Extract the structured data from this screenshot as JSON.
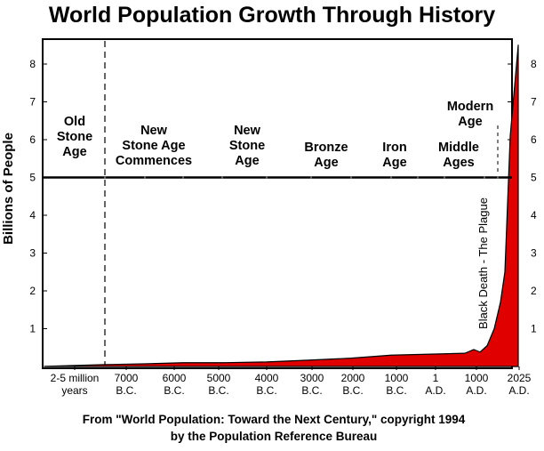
{
  "chart_data": {
    "type": "area",
    "title": "World Population Growth Through History",
    "ylabel": "Billions of People",
    "ylim": [
      0,
      8.6
    ],
    "yticks": [
      "1",
      "2",
      "3",
      "4",
      "5",
      "6",
      "7",
      "8"
    ],
    "xticks": [
      {
        "line1": "2-5 million",
        "line2": "years"
      },
      {
        "line1": "7000",
        "line2": "B.C."
      },
      {
        "line1": "6000",
        "line2": "B.C."
      },
      {
        "line1": "5000",
        "line2": "B.C."
      },
      {
        "line1": "4000",
        "line2": "B.C."
      },
      {
        "line1": "3000",
        "line2": "B.C."
      },
      {
        "line1": "2000",
        "line2": "B.C."
      },
      {
        "line1": "1000",
        "line2": "B.C."
      },
      {
        "line1": "1",
        "line2": "A.D."
      },
      {
        "line1": "1000",
        "line2": "A.D."
      },
      {
        "line1": "2025",
        "line2": "A.D."
      }
    ],
    "reference_line": {
      "y": 5
    },
    "eras": [
      {
        "lines": [
          "Old",
          "Stone",
          "Age"
        ]
      },
      {
        "lines": [
          "New",
          "Stone Age",
          "Commences"
        ]
      },
      {
        "lines": [
          "New",
          "Stone",
          "Age"
        ]
      },
      {
        "lines": [
          "Bronze",
          "Age"
        ]
      },
      {
        "lines": [
          "Iron",
          "Age"
        ]
      },
      {
        "lines": [
          "Middle",
          "Ages"
        ]
      },
      {
        "lines": [
          "Modern",
          "Age"
        ]
      }
    ],
    "series": [
      {
        "fill": "#e00000",
        "points": [
          [
            "2-5 million years",
            0.005
          ],
          [
            "7000 B.C.",
            0.05
          ],
          [
            "6000 B.C.",
            0.07
          ],
          [
            "5000 B.C.",
            0.1
          ],
          [
            "4000 B.C.",
            0.1
          ],
          [
            "3000 B.C.",
            0.12
          ],
          [
            "2000 B.C.",
            0.17
          ],
          [
            "1000 B.C.",
            0.22
          ],
          [
            "1 A.D.",
            0.3
          ],
          [
            "1000 A.D.",
            0.35
          ],
          [
            "1200 A.D.",
            0.45
          ],
          [
            "1350 A.D.",
            0.38
          ],
          [
            "1650 A.D.",
            0.55
          ],
          [
            "1800 A.D.",
            1.0
          ],
          [
            "1900 A.D.",
            1.7
          ],
          [
            "1950 A.D.",
            2.5
          ],
          [
            "2000 A.D.",
            6.1
          ],
          [
            "2025 A.D.",
            8.5
          ]
        ]
      }
    ],
    "annotations": [
      {
        "text": "Black Death - The Plague",
        "x": "1350 A.D."
      }
    ],
    "source": [
      "From \"World Population: Toward the Next Century,\" copyright 1994",
      "by the Population Reference Bureau"
    ]
  }
}
